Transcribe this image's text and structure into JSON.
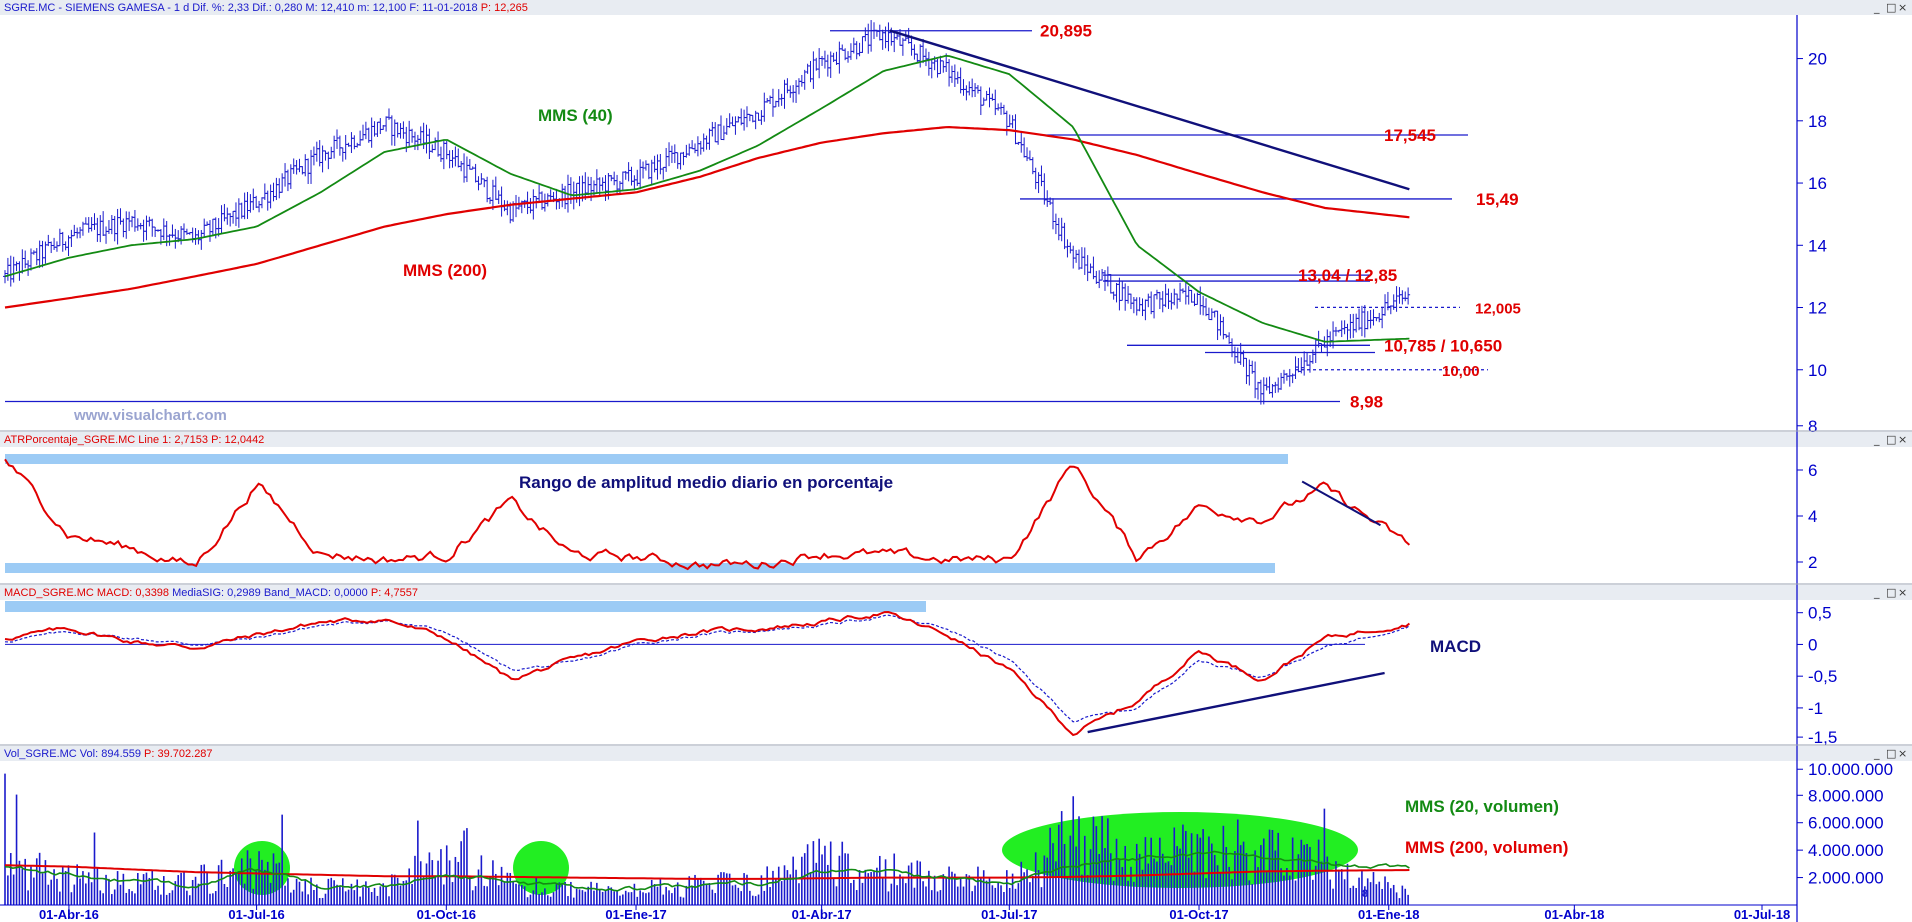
{
  "colors": {
    "price": "#1a1acc",
    "sma40": "#138a13",
    "sma200": "#e00000",
    "trend": "#10107a",
    "level": "#1a1acc",
    "atr": "#e00000",
    "band": "#9ccbf5",
    "macd": "#e00000",
    "signal": "#1a1acc",
    "volbar": "#1a1acc",
    "vol20": "#138a13",
    "vol200": "#e00000",
    "highlight": "#22ee22",
    "axis": "#0000cc",
    "label_red": "#e00000"
  },
  "window_buttons": [
    "_",
    "□",
    "×"
  ],
  "x_axis": {
    "ticks": [
      "01-Abr-16",
      "01-Jul-16",
      "01-Oct-16",
      "01-Ene-17",
      "01-Abr-17",
      "01-Jul-17",
      "01-Oct-17",
      "01-Ene-18",
      "01-Abr-18",
      "01-Jul-18"
    ]
  },
  "panels": {
    "price": {
      "header": [
        {
          "t": "SGRE.MC - SIEMENS GAMESA - 1 d",
          "c": "#1a1acc"
        },
        {
          "t": "Dif. %: 2,33",
          "c": "#1a1acc"
        },
        {
          "t": "Dif.: 0,280",
          "c": "#1a1acc"
        },
        {
          "t": "M: 12,410",
          "c": "#1a1acc"
        },
        {
          "t": "m: 12,100",
          "c": "#1a1acc"
        },
        {
          "t": "F: 11-01-2018",
          "c": "#1a1acc"
        },
        {
          "t": "P: 12,265",
          "c": "#e00000"
        }
      ],
      "watermark": "www.visualchart.com",
      "y_ticks": [
        "20",
        "18",
        "16",
        "14",
        "12",
        "10",
        "8"
      ],
      "levels": [
        {
          "label": "20,895",
          "value": 20.895
        },
        {
          "label": "17,545",
          "value": 17.545
        },
        {
          "label": "15,49",
          "value": 15.49
        },
        {
          "label": "13,04 / 12,85",
          "value": 13.04
        },
        {
          "label": "12,005",
          "value": 12.005
        },
        {
          "label": "10,785 / 10,650",
          "value": 10.785
        },
        {
          "label": "10,00",
          "value": 10.0
        },
        {
          "label": "8,98",
          "value": 8.98
        }
      ],
      "labels": {
        "sma40": "MMS (40)",
        "sma200": "MMS (200)"
      }
    },
    "atr": {
      "header": [
        {
          "t": "ATRPorcentaje_SGRE.MC",
          "c": "#e00000"
        },
        {
          "t": "Line 1: 2,7153",
          "c": "#e00000"
        },
        {
          "t": "P: 12,0442",
          "c": "#e00000"
        }
      ],
      "title": "Rango de amplitud medio diario en porcentaje",
      "y_ticks": [
        "6",
        "4",
        "2"
      ]
    },
    "macd": {
      "header": [
        {
          "t": "MACD_SGRE.MC",
          "c": "#e00000"
        },
        {
          "t": "MACD: 0,3398",
          "c": "#e00000"
        },
        {
          "t": "MediaSIG: 0,2989",
          "c": "#1a1acc"
        },
        {
          "t": "Band_MACD: 0,0000",
          "c": "#1a1acc"
        },
        {
          "t": "P: 4,7557",
          "c": "#e00000"
        }
      ],
      "title": "MACD",
      "y_ticks": [
        "0,5",
        "0",
        "-0,5",
        "-1",
        "-1,5"
      ]
    },
    "volume": {
      "header": [
        {
          "t": "Vol_SGRE.MC",
          "c": "#1a1acc"
        },
        {
          "t": "Vol: 894.559",
          "c": "#1a1acc"
        },
        {
          "t": "P: 39.702.287",
          "c": "#e00000"
        }
      ],
      "y_ticks": [
        "10.000.000",
        "8.000.000",
        "6.000.000",
        "4.000.000",
        "2.000.000"
      ],
      "labels": {
        "vol20": "MMS (20, volumen)",
        "vol200": "MMS (200, volumen)"
      },
      "last_label": "8"
    }
  },
  "chart_data": [
    {
      "type": "line",
      "title": "SGRE.MC - SIEMENS GAMESA - 1 d",
      "x": [
        "2016-03-01",
        "2016-04-01",
        "2016-05-01",
        "2016-06-01",
        "2016-07-01",
        "2016-08-01",
        "2016-09-01",
        "2016-10-01",
        "2016-11-01",
        "2016-12-01",
        "2017-01-01",
        "2017-02-01",
        "2017-03-01",
        "2017-04-01",
        "2017-05-01",
        "2017-06-01",
        "2017-07-01",
        "2017-08-01",
        "2017-09-01",
        "2017-10-01",
        "2017-11-01",
        "2017-12-01",
        "2018-01-11"
      ],
      "series": [
        {
          "name": "Precio",
          "values": [
            13.0,
            14.3,
            14.8,
            14.2,
            15.4,
            16.9,
            17.9,
            17.0,
            15.1,
            15.7,
            16.2,
            17.3,
            18.3,
            19.9,
            20.8,
            19.6,
            18.0,
            13.6,
            12.1,
            12.4,
            9.2,
            10.9,
            12.4
          ]
        },
        {
          "name": "MMS (40)",
          "values": [
            13.0,
            13.6,
            14.0,
            14.2,
            14.6,
            15.7,
            17.0,
            17.4,
            16.3,
            15.6,
            15.8,
            16.4,
            17.2,
            18.4,
            19.6,
            20.1,
            19.5,
            17.8,
            14.0,
            12.5,
            11.5,
            10.9,
            11.0
          ]
        },
        {
          "name": "MMS (200)",
          "values": [
            12.0,
            12.3,
            12.6,
            13.0,
            13.4,
            14.0,
            14.6,
            15.0,
            15.3,
            15.5,
            15.7,
            16.2,
            16.8,
            17.3,
            17.6,
            17.8,
            17.7,
            17.4,
            16.9,
            16.3,
            15.7,
            15.2,
            14.9
          ]
        }
      ],
      "ylim": [
        8,
        21.4
      ]
    },
    {
      "type": "line",
      "title": "ATRPorcentaje_SGRE.MC",
      "x": [
        "2016-03-01",
        "2016-04-01",
        "2016-05-01",
        "2016-06-01",
        "2016-07-01",
        "2016-08-01",
        "2016-09-01",
        "2016-10-01",
        "2016-11-01",
        "2016-12-01",
        "2017-01-01",
        "2017-02-01",
        "2017-03-01",
        "2017-04-01",
        "2017-05-01",
        "2017-06-01",
        "2017-07-01",
        "2017-08-01",
        "2017-09-01",
        "2017-10-01",
        "2017-11-01",
        "2017-12-01",
        "2018-01-11"
      ],
      "series": [
        {
          "name": "Line 1",
          "values": [
            6.5,
            3.2,
            2.6,
            1.8,
            5.4,
            2.4,
            2.1,
            2.3,
            4.6,
            2.3,
            2.2,
            1.9,
            1.9,
            2.4,
            2.3,
            2.1,
            2.1,
            6.3,
            2.2,
            4.4,
            3.9,
            5.2,
            2.7
          ]
        }
      ],
      "ylim": [
        1,
        7
      ]
    },
    {
      "type": "line",
      "title": "MACD_SGRE.MC",
      "x": [
        "2016-03-01",
        "2016-04-01",
        "2016-05-01",
        "2016-06-01",
        "2016-07-01",
        "2016-08-01",
        "2016-09-01",
        "2016-10-01",
        "2016-11-01",
        "2016-12-01",
        "2017-01-01",
        "2017-02-01",
        "2017-03-01",
        "2017-04-01",
        "2017-05-01",
        "2017-06-01",
        "2017-07-01",
        "2017-08-01",
        "2017-09-01",
        "2017-10-01",
        "2017-11-01",
        "2017-12-01",
        "2018-01-11"
      ],
      "series": [
        {
          "name": "MACD",
          "values": [
            0.1,
            0.25,
            0.05,
            -0.05,
            0.15,
            0.35,
            0.4,
            0.1,
            -0.55,
            -0.25,
            0.05,
            0.2,
            0.25,
            0.35,
            0.5,
            0.15,
            -0.4,
            -1.4,
            -0.9,
            -0.1,
            -0.55,
            0.1,
            0.34
          ]
        },
        {
          "name": "MediaSIG",
          "values": [
            0.05,
            0.2,
            0.1,
            0.0,
            0.1,
            0.3,
            0.38,
            0.2,
            -0.4,
            -0.3,
            0.0,
            0.15,
            0.22,
            0.3,
            0.45,
            0.25,
            -0.25,
            -1.2,
            -1.0,
            -0.25,
            -0.5,
            -0.05,
            0.3
          ]
        }
      ],
      "ylim": [
        -1.6,
        0.7
      ]
    },
    {
      "type": "bar",
      "title": "Vol_SGRE.MC",
      "x": [
        "2016-03-01",
        "2016-04-01",
        "2016-05-01",
        "2016-06-01",
        "2016-07-01",
        "2016-08-01",
        "2016-09-01",
        "2016-10-01",
        "2016-11-01",
        "2016-12-01",
        "2017-01-01",
        "2017-02-01",
        "2017-03-01",
        "2017-04-01",
        "2017-05-01",
        "2017-06-01",
        "2017-07-01",
        "2017-08-01",
        "2017-09-01",
        "2017-10-01",
        "2017-11-01",
        "2017-12-01",
        "2018-01-11"
      ],
      "series": [
        {
          "name": "Vol",
          "values": [
            3500000,
            2200000,
            1600000,
            2000000,
            3300000,
            1400000,
            1400000,
            3800000,
            1700000,
            1200000,
            1200000,
            1600000,
            1800000,
            3500000,
            2800000,
            2100000,
            1800000,
            5500000,
            3500000,
            4500000,
            4200000,
            3300000,
            894559
          ]
        },
        {
          "name": "MMS (20, volumen)",
          "values": [
            2800000,
            2200000,
            1700000,
            1500000,
            2500000,
            1400000,
            1300000,
            2300000,
            1700000,
            1300000,
            1200000,
            1400000,
            1600000,
            2400000,
            2500000,
            1900000,
            1500000,
            3000000,
            3400000,
            3800000,
            3600000,
            3000000,
            2700000
          ]
        },
        {
          "name": "MMS (200, volumen)",
          "values": [
            2900000,
            2800000,
            2600000,
            2400000,
            2300000,
            2200000,
            2100000,
            2100000,
            2050000,
            2000000,
            1950000,
            1900000,
            1900000,
            1950000,
            2000000,
            2000000,
            2000000,
            2050000,
            2150000,
            2300000,
            2450000,
            2500000,
            2550000
          ]
        }
      ],
      "ylim": [
        0,
        10500000
      ]
    }
  ]
}
